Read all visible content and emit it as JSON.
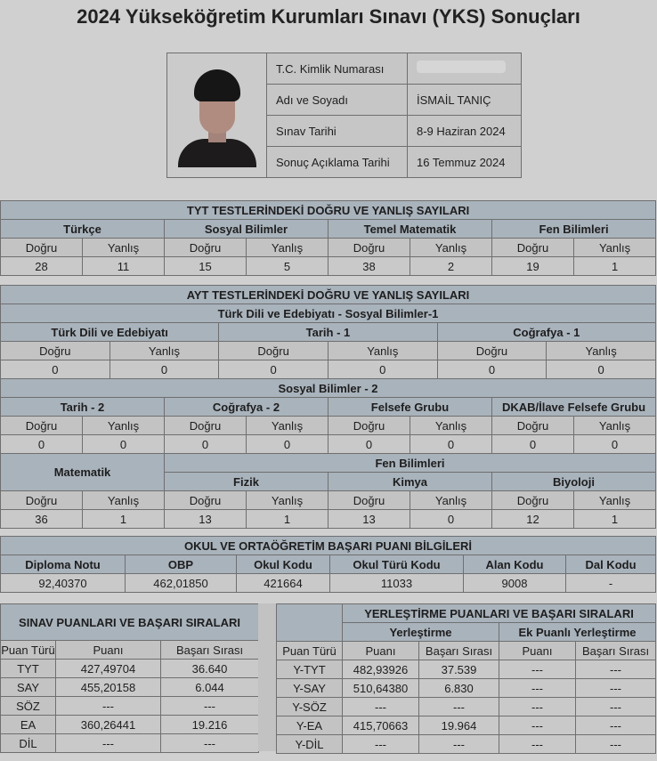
{
  "page_title": "2024 Yükseköğretim Kurumları Sınavı (YKS) Sonuçları",
  "candidate": {
    "tc_label": "T.C. Kimlik Numarası",
    "tc_value": "",
    "name_label": "Adı ve Soyadı",
    "name_value": "İSMAİL TANIÇ",
    "exam_date_label": "Sınav Tarihi",
    "exam_date_value": "8-9 Haziran 2024",
    "result_date_label": "Sonuç Açıklama Tarihi",
    "result_date_value": "16 Temmuz 2024"
  },
  "labels": {
    "dogru": "Doğru",
    "yanlis": "Yanlış"
  },
  "tyt": {
    "title": "TYT TESTLERİNDEKİ DOĞRU VE YANLIŞ SAYILARI",
    "subjects": [
      {
        "name": "Türkçe",
        "dogru": "28",
        "yanlis": "11"
      },
      {
        "name": "Sosyal Bilimler",
        "dogru": "15",
        "yanlis": "5"
      },
      {
        "name": "Temel Matematik",
        "dogru": "38",
        "yanlis": "2"
      },
      {
        "name": "Fen Bilimleri",
        "dogru": "19",
        "yanlis": "1"
      }
    ]
  },
  "ayt": {
    "title": "AYT TESTLERİNDEKİ DOĞRU VE YANLIŞ SAYILARI",
    "group1": {
      "title": "Türk Dili ve Edebiyatı - Sosyal Bilimler-1",
      "subjects": [
        {
          "name": "Türk Dili ve Edebiyatı",
          "dogru": "0",
          "yanlis": "0"
        },
        {
          "name": "Tarih - 1",
          "dogru": "0",
          "yanlis": "0"
        },
        {
          "name": "Coğrafya - 1",
          "dogru": "0",
          "yanlis": "0"
        }
      ]
    },
    "group2": {
      "title": "Sosyal Bilimler - 2",
      "subjects": [
        {
          "name": "Tarih - 2",
          "dogru": "0",
          "yanlis": "0"
        },
        {
          "name": "Coğrafya - 2",
          "dogru": "0",
          "yanlis": "0"
        },
        {
          "name": "Felsefe Grubu",
          "dogru": "0",
          "yanlis": "0"
        },
        {
          "name": "DKAB/İlave Felsefe Grubu",
          "dogru": "0",
          "yanlis": "0"
        }
      ]
    },
    "math": {
      "name": "Matematik",
      "dogru": "36",
      "yanlis": "1"
    },
    "fen": {
      "title": "Fen Bilimleri",
      "subjects": [
        {
          "name": "Fizik",
          "dogru": "13",
          "yanlis": "1"
        },
        {
          "name": "Kimya",
          "dogru": "13",
          "yanlis": "0"
        },
        {
          "name": "Biyoloji",
          "dogru": "12",
          "yanlis": "1"
        }
      ]
    }
  },
  "okul": {
    "title": "OKUL VE ORTAÖĞRETİM BAŞARI PUANI BİLGİLERİ",
    "headers": [
      "Diploma Notu",
      "OBP",
      "Okul Kodu",
      "Okul Türü Kodu",
      "Alan Kodu",
      "Dal Kodu"
    ],
    "values": [
      "92,40370",
      "462,01850",
      "421664",
      "11033",
      "9008",
      "-"
    ]
  },
  "sinav": {
    "title": "SINAV PUANLARI VE BAŞARI SIRALARI",
    "headers": [
      "Puan Türü",
      "Puanı",
      "Başarı Sırası"
    ],
    "rows": [
      [
        "TYT",
        "427,49704",
        "36.640"
      ],
      [
        "SAY",
        "455,20158",
        "6.044"
      ],
      [
        "SÖZ",
        "---",
        "---"
      ],
      [
        "EA",
        "360,26441",
        "19.216"
      ],
      [
        "DİL",
        "---",
        "---"
      ]
    ]
  },
  "yerlestirme": {
    "title": "YERLEŞTİRME PUANLARI VE BAŞARI SIRALARI",
    "sub1": "Yerleştirme",
    "sub2": "Ek Puanlı Yerleştirme",
    "headers": [
      "Puan Türü",
      "Puanı",
      "Başarı Sırası",
      "Puanı",
      "Başarı Sırası"
    ],
    "rows": [
      [
        "Y-TYT",
        "482,93926",
        "37.539",
        "---",
        "---"
      ],
      [
        "Y-SAY",
        "510,64380",
        "6.830",
        "---",
        "---"
      ],
      [
        "Y-SÖZ",
        "---",
        "---",
        "---",
        "---"
      ],
      [
        "Y-EA",
        "415,70663",
        "19.964",
        "---",
        "---"
      ],
      [
        "Y-DİL",
        "---",
        "---",
        "---",
        "---"
      ]
    ]
  }
}
